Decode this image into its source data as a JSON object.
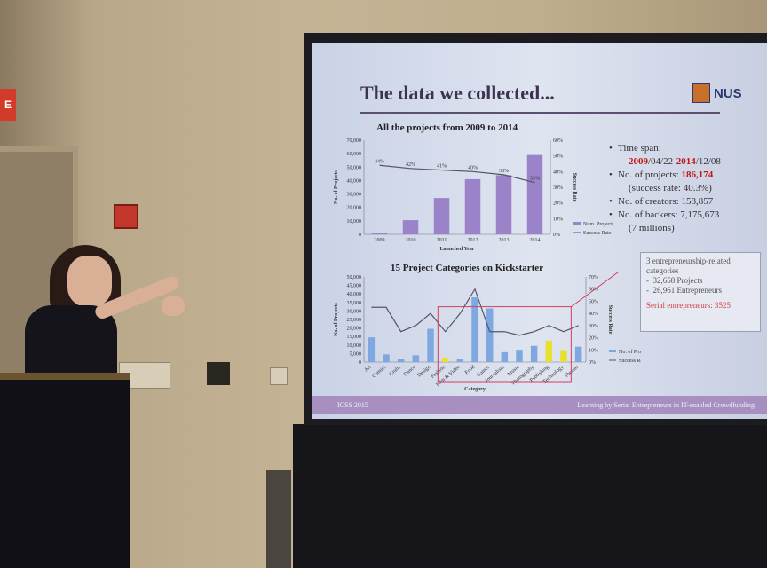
{
  "room": {
    "exit_sign": "E"
  },
  "slide": {
    "title": "The data we collected...",
    "logo": "NUS",
    "footer_left": "ICSS 2015",
    "footer_right": "Learning by Serial Entrepreneurs in IT-enabled Crowdfunding"
  },
  "stats": {
    "time_span_label": "Time span:",
    "time_span_start": "2009",
    "time_span_start_rest": "/04/22-",
    "time_span_end": "2014",
    "time_span_end_rest": "/12/08",
    "projects_label": "No. of projects: ",
    "projects_value": "186,174",
    "success_rate": "(success rate: 40.3%)",
    "creators": "No. of creators: 158,857",
    "backers": "No. of backers: 7,175,673",
    "backers_approx": "(7 millions)"
  },
  "callout": {
    "heading": "3 entrepreneurship-related categories",
    "item1": "32,658 Projects",
    "item2": "26,961 Entrepreneurs",
    "serial": "Serial entrepreneurs: 3525"
  },
  "chart_data": [
    {
      "type": "bar",
      "title": "All the projects from 2009 to 2014",
      "xlabel": "Launched Year",
      "ylabel": "No. of Projects",
      "y2label": "Success Rate",
      "categories": [
        "2009",
        "2010",
        "2011",
        "2012",
        "2013",
        "2014"
      ],
      "ylim": [
        0,
        70000
      ],
      "yticks": [
        "0",
        "10,000",
        "20,000",
        "30,000",
        "40,000",
        "50,000",
        "60,000",
        "70,000"
      ],
      "y2ticks": [
        "0%",
        "10%",
        "20%",
        "30%",
        "40%",
        "50%",
        "60%"
      ],
      "series": [
        {
          "name": "Num. Projects",
          "values": [
            1100,
            10500,
            27000,
            41000,
            44000,
            59000
          ],
          "color": "#9a83c8"
        },
        {
          "name": "Success Rate",
          "values": [
            0.44,
            0.42,
            0.41,
            0.4,
            0.38,
            0.33
          ],
          "color": "#555566"
        }
      ],
      "point_labels": [
        "44%",
        "42%",
        "41%",
        "40%",
        "38%",
        "33%"
      ],
      "legend": "bottom-right"
    },
    {
      "type": "bar",
      "title": "15 Project Categories on Kickstarter",
      "xlabel": "Category",
      "ylabel": "No. of Projects",
      "y2label": "Success Rate",
      "categories": [
        "Art",
        "Comics",
        "Crafts",
        "Dance",
        "Design",
        "Fashion",
        "Film & Video",
        "Food",
        "Games",
        "Journalism",
        "Music",
        "Photography",
        "Publishing",
        "Technology",
        "Theater"
      ],
      "ylim": [
        0,
        50000
      ],
      "yticks": [
        "0",
        "5,000",
        "10,000",
        "15,000",
        "20,000",
        "25,000",
        "30,000",
        "35,000",
        "40,000",
        "45,000",
        "50,000"
      ],
      "y2ticks": [
        "0%",
        "10%",
        "20%",
        "30%",
        "40%",
        "50%",
        "60%",
        "70%"
      ],
      "series": [
        {
          "name": "No. of Projects",
          "values": [
            14500,
            4500,
            2000,
            4000,
            19500,
            2500,
            2000,
            38000,
            31500,
            5800,
            7200,
            9500,
            12500,
            7000,
            9000
          ],
          "color": "#7fa8e0"
        },
        {
          "name": "Success Rate",
          "values": [
            0.45,
            0.45,
            0.25,
            0.3,
            0.4,
            0.25,
            0.4,
            0.6,
            0.25,
            0.25,
            0.22,
            0.25,
            0.3,
            0.25,
            0.3
          ],
          "color": "#555566"
        }
      ],
      "highlight": [
        "Fashion",
        "Publishing",
        "Technology"
      ],
      "legend": "bottom-right"
    }
  ]
}
